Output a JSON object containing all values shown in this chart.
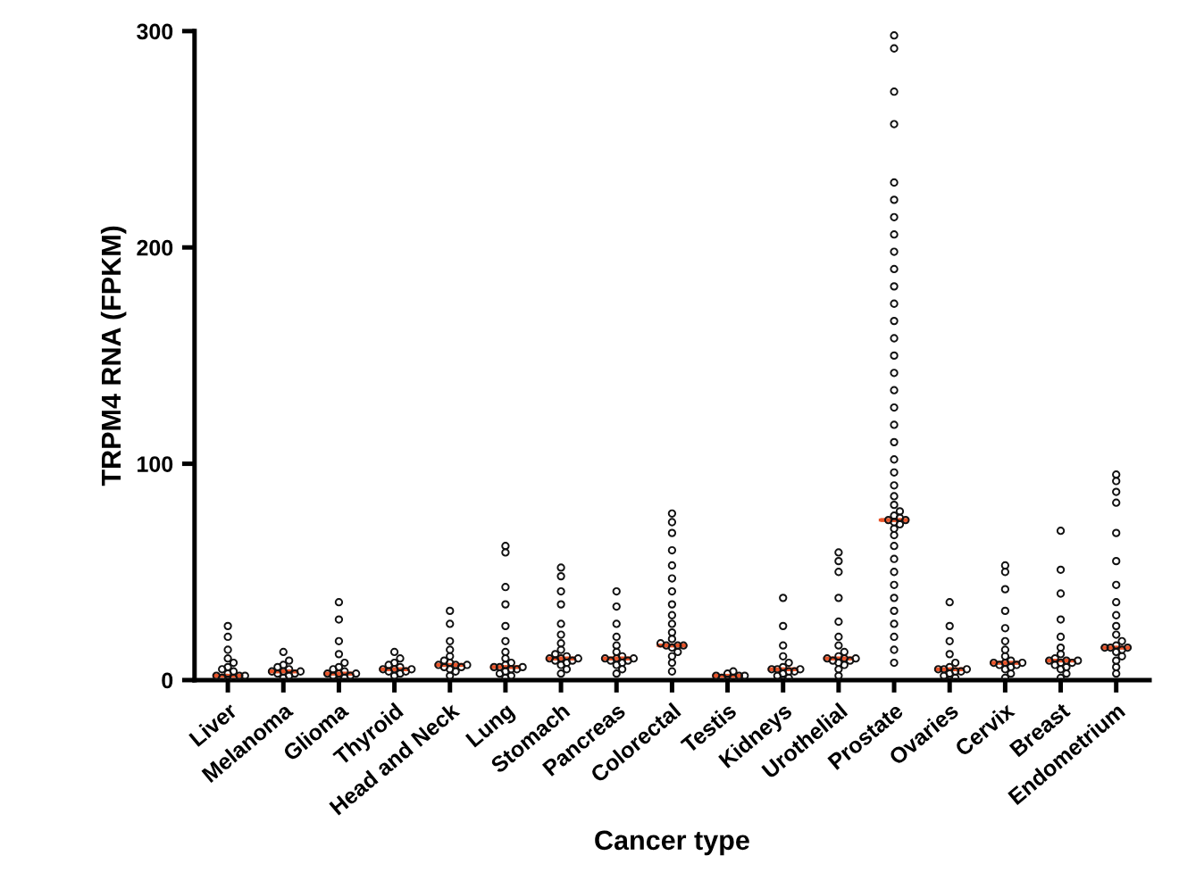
{
  "chart_data": {
    "type": "scatter",
    "xlabel": "Cancer type",
    "ylabel": "TRPM4 RNA (FPKM)",
    "categories": [
      "Liver",
      "Melanoma",
      "Glioma",
      "Thyroid",
      "Head and Neck",
      "Lung",
      "Stomach",
      "Pancreas",
      "Colorectal",
      "Testis",
      "Kidneys",
      "Urothelial",
      "Prostate",
      "Ovaries",
      "Cervix",
      "Breast",
      "Endometrium"
    ],
    "ylim": [
      0,
      300
    ],
    "yticks": [
      0,
      100,
      200,
      300
    ],
    "marker": "circle",
    "series": [
      {
        "color": "#111111",
        "x": [
          "Liver",
          "Liver",
          "Liver",
          "Liver",
          "Liver",
          "Liver",
          "Liver",
          "Liver",
          "Liver",
          "Liver",
          "Liver",
          "Liver",
          "Liver",
          "Liver",
          "Liver",
          "Melanoma",
          "Melanoma",
          "Melanoma",
          "Melanoma",
          "Melanoma",
          "Melanoma",
          "Melanoma",
          "Melanoma",
          "Melanoma",
          "Melanoma",
          "Melanoma",
          "Melanoma",
          "Glioma",
          "Glioma",
          "Glioma",
          "Glioma",
          "Glioma",
          "Glioma",
          "Glioma",
          "Glioma",
          "Glioma",
          "Glioma",
          "Glioma",
          "Glioma",
          "Glioma",
          "Glioma",
          "Glioma",
          "Thyroid",
          "Thyroid",
          "Thyroid",
          "Thyroid",
          "Thyroid",
          "Thyroid",
          "Thyroid",
          "Thyroid",
          "Thyroid",
          "Thyroid",
          "Thyroid",
          "Thyroid",
          "Head and Neck",
          "Head and Neck",
          "Head and Neck",
          "Head and Neck",
          "Head and Neck",
          "Head and Neck",
          "Head and Neck",
          "Head and Neck",
          "Head and Neck",
          "Head and Neck",
          "Head and Neck",
          "Head and Neck",
          "Head and Neck",
          "Head and Neck",
          "Head and Neck",
          "Lung",
          "Lung",
          "Lung",
          "Lung",
          "Lung",
          "Lung",
          "Lung",
          "Lung",
          "Lung",
          "Lung",
          "Lung",
          "Lung",
          "Lung",
          "Lung",
          "Lung",
          "Lung",
          "Lung",
          "Lung",
          "Lung",
          "Stomach",
          "Stomach",
          "Stomach",
          "Stomach",
          "Stomach",
          "Stomach",
          "Stomach",
          "Stomach",
          "Stomach",
          "Stomach",
          "Stomach",
          "Stomach",
          "Stomach",
          "Stomach",
          "Stomach",
          "Stomach",
          "Stomach",
          "Stomach",
          "Stomach",
          "Pancreas",
          "Pancreas",
          "Pancreas",
          "Pancreas",
          "Pancreas",
          "Pancreas",
          "Pancreas",
          "Pancreas",
          "Pancreas",
          "Pancreas",
          "Pancreas",
          "Pancreas",
          "Pancreas",
          "Pancreas",
          "Pancreas",
          "Pancreas",
          "Colorectal",
          "Colorectal",
          "Colorectal",
          "Colorectal",
          "Colorectal",
          "Colorectal",
          "Colorectal",
          "Colorectal",
          "Colorectal",
          "Colorectal",
          "Colorectal",
          "Colorectal",
          "Colorectal",
          "Colorectal",
          "Colorectal",
          "Colorectal",
          "Colorectal",
          "Colorectal",
          "Colorectal",
          "Colorectal",
          "Colorectal",
          "Testis",
          "Testis",
          "Testis",
          "Testis",
          "Testis",
          "Testis",
          "Testis",
          "Testis",
          "Kidneys",
          "Kidneys",
          "Kidneys",
          "Kidneys",
          "Kidneys",
          "Kidneys",
          "Kidneys",
          "Kidneys",
          "Kidneys",
          "Kidneys",
          "Kidneys",
          "Kidneys",
          "Kidneys",
          "Kidneys",
          "Kidneys",
          "Urothelial",
          "Urothelial",
          "Urothelial",
          "Urothelial",
          "Urothelial",
          "Urothelial",
          "Urothelial",
          "Urothelial",
          "Urothelial",
          "Urothelial",
          "Urothelial",
          "Urothelial",
          "Urothelial",
          "Urothelial",
          "Urothelial",
          "Urothelial",
          "Urothelial",
          "Urothelial",
          "Prostate",
          "Prostate",
          "Prostate",
          "Prostate",
          "Prostate",
          "Prostate",
          "Prostate",
          "Prostate",
          "Prostate",
          "Prostate",
          "Prostate",
          "Prostate",
          "Prostate",
          "Prostate",
          "Prostate",
          "Prostate",
          "Prostate",
          "Prostate",
          "Prostate",
          "Prostate",
          "Prostate",
          "Prostate",
          "Prostate",
          "Prostate",
          "Prostate",
          "Prostate",
          "Prostate",
          "Prostate",
          "Prostate",
          "Prostate",
          "Prostate",
          "Prostate",
          "Prostate",
          "Prostate",
          "Prostate",
          "Prostate",
          "Prostate",
          "Prostate",
          "Prostate",
          "Prostate",
          "Prostate",
          "Prostate",
          "Prostate",
          "Prostate",
          "Ovaries",
          "Ovaries",
          "Ovaries",
          "Ovaries",
          "Ovaries",
          "Ovaries",
          "Ovaries",
          "Ovaries",
          "Ovaries",
          "Ovaries",
          "Ovaries",
          "Ovaries",
          "Ovaries",
          "Ovaries",
          "Ovaries",
          "Cervix",
          "Cervix",
          "Cervix",
          "Cervix",
          "Cervix",
          "Cervix",
          "Cervix",
          "Cervix",
          "Cervix",
          "Cervix",
          "Cervix",
          "Cervix",
          "Cervix",
          "Cervix",
          "Cervix",
          "Cervix",
          "Cervix",
          "Cervix",
          "Breast",
          "Breast",
          "Breast",
          "Breast",
          "Breast",
          "Breast",
          "Breast",
          "Breast",
          "Breast",
          "Breast",
          "Breast",
          "Breast",
          "Breast",
          "Breast",
          "Breast",
          "Breast",
          "Breast",
          "Breast",
          "Endometrium",
          "Endometrium",
          "Endometrium",
          "Endometrium",
          "Endometrium",
          "Endometrium",
          "Endometrium",
          "Endometrium",
          "Endometrium",
          "Endometrium",
          "Endometrium",
          "Endometrium",
          "Endometrium",
          "Endometrium",
          "Endometrium",
          "Endometrium",
          "Endometrium",
          "Endometrium",
          "Endometrium",
          "Endometrium",
          "Endometrium",
          "Endometrium"
        ],
        "values": [
          0,
          1,
          1,
          2,
          2,
          2,
          3,
          4,
          5,
          6,
          8,
          10,
          14,
          20,
          25,
          1,
          2,
          3,
          3,
          4,
          4,
          4,
          5,
          6,
          7,
          9,
          13,
          0,
          1,
          2,
          2,
          3,
          3,
          3,
          4,
          5,
          6,
          8,
          12,
          18,
          28,
          36,
          2,
          3,
          4,
          4,
          5,
          5,
          5,
          6,
          7,
          8,
          10,
          13,
          2,
          4,
          5,
          6,
          6,
          7,
          7,
          7,
          8,
          9,
          11,
          14,
          18,
          26,
          32,
          1,
          2,
          3,
          4,
          5,
          5,
          6,
          6,
          6,
          7,
          8,
          10,
          13,
          18,
          25,
          35,
          43,
          59,
          62,
          3,
          5,
          7,
          8,
          9,
          9,
          10,
          10,
          10,
          11,
          12,
          14,
          17,
          21,
          26,
          35,
          41,
          48,
          52,
          3,
          5,
          7,
          8,
          9,
          9,
          10,
          10,
          10,
          11,
          13,
          16,
          20,
          26,
          34,
          41,
          4,
          8,
          11,
          13,
          15,
          16,
          16,
          16,
          17,
          19,
          22,
          26,
          30,
          35,
          41,
          47,
          53,
          60,
          68,
          73,
          77,
          0,
          1,
          1,
          2,
          2,
          2,
          3,
          4,
          0,
          1,
          2,
          3,
          4,
          4,
          5,
          5,
          5,
          6,
          8,
          11,
          16,
          25,
          38,
          2,
          5,
          7,
          8,
          9,
          9,
          10,
          10,
          10,
          11,
          13,
          16,
          20,
          27,
          38,
          50,
          55,
          59,
          8,
          14,
          20,
          26,
          32,
          38,
          44,
          50,
          56,
          62,
          67,
          70,
          72,
          73,
          74,
          74,
          75,
          76,
          78,
          81,
          85,
          90,
          96,
          102,
          110,
          118,
          126,
          134,
          142,
          150,
          158,
          166,
          174,
          182,
          190,
          198,
          206,
          214,
          222,
          230,
          257,
          272,
          292,
          298,
          0,
          1,
          2,
          3,
          4,
          4,
          5,
          5,
          5,
          6,
          8,
          12,
          18,
          25,
          36,
          1,
          3,
          5,
          6,
          7,
          7,
          8,
          8,
          8,
          9,
          11,
          14,
          18,
          24,
          32,
          42,
          50,
          53,
          1,
          3,
          5,
          6,
          7,
          8,
          8,
          9,
          9,
          9,
          10,
          12,
          15,
          20,
          28,
          40,
          51,
          69,
          3,
          6,
          9,
          11,
          13,
          14,
          15,
          15,
          15,
          16,
          18,
          21,
          25,
          30,
          36,
          44,
          55,
          68,
          82,
          87,
          92,
          95
        ]
      },
      {
        "type": "box",
        "color": "#e8542a",
        "boxes": [
          {
            "low": 2,
            "q1": 2,
            "median": 2,
            "q3": 2,
            "high": 2
          },
          {
            "low": 4,
            "q1": 4,
            "median": 4,
            "q3": 4,
            "high": 4
          },
          {
            "low": 3,
            "q1": 3,
            "median": 3,
            "q3": 3,
            "high": 3
          },
          {
            "low": 5,
            "q1": 5,
            "median": 5,
            "q3": 5,
            "high": 5
          },
          {
            "low": 7,
            "q1": 7,
            "median": 7,
            "q3": 7,
            "high": 7
          },
          {
            "low": 6,
            "q1": 6,
            "median": 6,
            "q3": 6,
            "high": 6
          },
          {
            "low": 10,
            "q1": 10,
            "median": 10,
            "q3": 10,
            "high": 10
          },
          {
            "low": 10,
            "q1": 10,
            "median": 10,
            "q3": 10,
            "high": 10
          },
          {
            "low": 16,
            "q1": 16,
            "median": 16,
            "q3": 16,
            "high": 16
          },
          {
            "low": 2,
            "q1": 2,
            "median": 2,
            "q3": 2,
            "high": 2
          },
          {
            "low": 5,
            "q1": 5,
            "median": 5,
            "q3": 5,
            "high": 5
          },
          {
            "low": 10,
            "q1": 10,
            "median": 10,
            "q3": 10,
            "high": 10
          },
          {
            "low": 74,
            "q1": 74,
            "median": 74,
            "q3": 74,
            "high": 74
          },
          {
            "low": 5,
            "q1": 5,
            "median": 5,
            "q3": 5,
            "high": 5
          },
          {
            "low": 8,
            "q1": 8,
            "median": 8,
            "q3": 8,
            "high": 8
          },
          {
            "low": 9,
            "q1": 9,
            "median": 9,
            "q3": 9,
            "high": 9
          },
          {
            "low": 15,
            "q1": 15,
            "median": 15,
            "q3": 15,
            "high": 15
          }
        ]
      }
    ]
  }
}
